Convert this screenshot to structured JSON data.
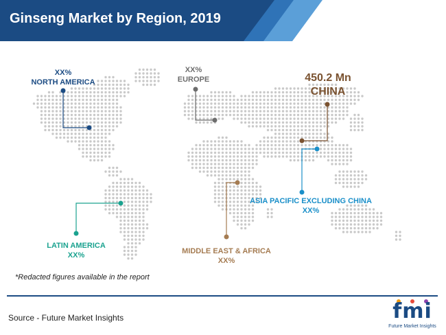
{
  "header": {
    "title": "Ginseng Market by Region, 2019"
  },
  "chart_data": {
    "type": "map",
    "title": "Ginseng Market by Region, 2019",
    "regions": [
      {
        "key": "north-america",
        "name": "NORTH AMERICA",
        "value": "XX%",
        "color": "#1b4b83"
      },
      {
        "key": "europe",
        "name": "EUROPE",
        "value": "XX%",
        "color": "#6d6d6d"
      },
      {
        "key": "china",
        "name": "CHINA",
        "value": "450.2 Mn",
        "color": "#7a5230"
      },
      {
        "key": "asia-pacific",
        "name": "ASIA PACIFIC EXCLUDING CHINA",
        "value": "XX%",
        "color": "#1a8fc9"
      },
      {
        "key": "latin-america",
        "name": "LATIN AMERICA",
        "value": "XX%",
        "color": "#1aa28f"
      },
      {
        "key": "middle-east-africa",
        "name": "MIDDLE EAST & AFRICA",
        "value": "XX%",
        "color": "#a57c52"
      }
    ]
  },
  "footer": {
    "note": "*Redacted figures available in the report",
    "source": "Source - Future Market Insights",
    "logo_text": "fmi",
    "logo_subtitle": "Future Market Insights"
  }
}
